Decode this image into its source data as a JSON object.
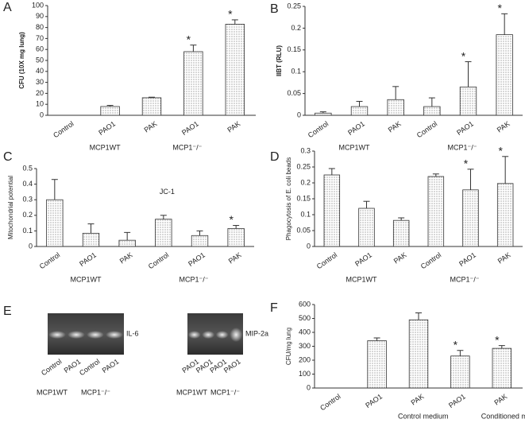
{
  "chart_data": [
    {
      "type": "bar",
      "panel": "A",
      "ylabel": "CFU (10X mg lung)",
      "categories": [
        "Control",
        "PAO1",
        "PAK",
        "PAO1",
        "PAK"
      ],
      "values": [
        0,
        8,
        16,
        58,
        83
      ],
      "errors": [
        0,
        1,
        0.5,
        6,
        4
      ],
      "significance": [
        null,
        null,
        null,
        "*",
        "*"
      ],
      "group_labels": [
        null,
        "MCP1WT",
        null,
        "MCP1⁻/⁻",
        null
      ],
      "ylim": [
        0,
        100
      ],
      "yticks": [
        0,
        10,
        20,
        30,
        40,
        50,
        60,
        70,
        80,
        90,
        100
      ]
    },
    {
      "type": "bar",
      "panel": "B",
      "ylabel": "IIBT (RLU)",
      "categories": [
        "Control",
        "PAO1",
        "PAK",
        "Control",
        "PAO1",
        "PAK"
      ],
      "values": [
        0.005,
        0.02,
        0.036,
        0.02,
        0.065,
        0.185
      ],
      "errors": [
        0.003,
        0.012,
        0.03,
        0.02,
        0.058,
        0.048
      ],
      "significance": [
        null,
        null,
        null,
        null,
        "*",
        "*"
      ],
      "group_labels": [
        null,
        "MCP1WT",
        null,
        null,
        "MCP1⁻/⁻",
        null
      ],
      "ylim": [
        0,
        0.25
      ],
      "yticks": [
        0,
        0.05,
        0.1,
        0.15,
        0.2,
        0.25
      ]
    },
    {
      "type": "bar",
      "panel": "C",
      "ylabel": "Mitochondrial potential",
      "annotation": "JC-1",
      "categories": [
        "Control",
        "PAO1",
        "PAK",
        "Control",
        "PAO1",
        "PAK"
      ],
      "values": [
        0.3,
        0.085,
        0.04,
        0.175,
        0.07,
        0.115
      ],
      "errors": [
        0.13,
        0.06,
        0.05,
        0.025,
        0.03,
        0.02
      ],
      "significance": [
        null,
        null,
        null,
        null,
        null,
        "*"
      ],
      "group_labels": [
        null,
        "MCP1WT",
        null,
        null,
        "MCP1⁻/⁻",
        null
      ],
      "ylim": [
        0,
        0.5
      ],
      "yticks": [
        0,
        0.1,
        0.2,
        0.3,
        0.4,
        0.5
      ]
    },
    {
      "type": "bar",
      "panel": "D",
      "ylabel": "Phagocytosis of E. coli beads",
      "categories": [
        "Control",
        "PAO1",
        "PAK",
        "Control",
        "PAO1",
        "PAK"
      ],
      "values": [
        0.225,
        0.12,
        0.082,
        0.22,
        0.178,
        0.198
      ],
      "errors": [
        0.02,
        0.022,
        0.008,
        0.008,
        0.065,
        0.085
      ],
      "significance": [
        null,
        null,
        null,
        null,
        "*",
        "*"
      ],
      "group_labels": [
        null,
        "MCP1WT",
        null,
        null,
        "MCP1⁻/⁻",
        null
      ],
      "ylim": [
        0,
        0.3
      ],
      "yticks": [
        0,
        0.05,
        0.1,
        0.15,
        0.2,
        0.25,
        0.3
      ]
    },
    {
      "type": "bar",
      "panel": "F",
      "ylabel": "CFU/mg lung",
      "categories": [
        "Control",
        "PAO1",
        "PAK",
        "PAO1",
        "PAK"
      ],
      "values": [
        0,
        340,
        490,
        230,
        285
      ],
      "errors": [
        0,
        20,
        50,
        40,
        20
      ],
      "significance": [
        null,
        null,
        null,
        "*",
        "*"
      ],
      "group_labels": [
        null,
        null,
        "Control medium",
        null,
        "Conditioned medium"
      ],
      "ylim": [
        0,
        600
      ],
      "yticks": [
        0,
        100,
        200,
        300,
        400,
        500,
        600
      ]
    }
  ],
  "gel": {
    "panel": "E",
    "blots": [
      {
        "name": "IL-6",
        "lanes": [
          "Control",
          "PAO1",
          "Control",
          "PAO1"
        ],
        "groups": [
          "MCP1WT",
          "MCP1⁻/⁻"
        ]
      },
      {
        "name": "MIP-2a",
        "lanes": [
          "PAO1",
          "PAO1",
          "PAO1",
          "PAO1"
        ],
        "groups": [
          "MCP1WT",
          "MCP1⁻/⁻"
        ]
      }
    ]
  }
}
